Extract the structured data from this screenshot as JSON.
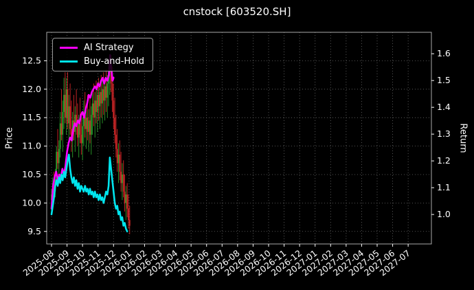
{
  "title": "cnstock [603520.SH]",
  "chart_data": {
    "type": "line",
    "title": "cnstock [603520.SH]",
    "ylabel_left": "Price",
    "ylabel_right": "Return",
    "x_unit": "months since 2025-08 (0 = 2025-08)",
    "xlim": [
      -0.31,
      24.5
    ],
    "left_ylim": [
      9.28,
      13.0
    ],
    "right_ylim": [
      0.89,
      1.68
    ],
    "left_yticks": [
      9.5,
      10.0,
      10.5,
      11.0,
      11.5,
      12.0,
      12.5
    ],
    "right_yticks": [
      1.0,
      1.1,
      1.2,
      1.3,
      1.4,
      1.5,
      1.6
    ],
    "xtick_pos": [
      0,
      1,
      2,
      3,
      4,
      5,
      6,
      7,
      8,
      9,
      10,
      11,
      12,
      13,
      14,
      15,
      16,
      17,
      18,
      19,
      20,
      21,
      22,
      23
    ],
    "xtick_labels": [
      "2025-08",
      "2025-09",
      "2025-10",
      "2025-11",
      "2025-12",
      "2026-01",
      "2026-02",
      "2026-03",
      "2026-04",
      "2026-05",
      "2026-06",
      "2026-07",
      "2026-08",
      "2026-09",
      "2026-10",
      "2026-11",
      "2026-12",
      "2027-01",
      "2027-02",
      "2027-03",
      "2027-04",
      "2027-05",
      "2027-06",
      "2027-07"
    ],
    "grid": true,
    "legend_position": "upper-left",
    "style": {
      "background": "#000000",
      "text": "#ffffff",
      "grid": "#6b6b6b",
      "spine": "#aaaaaa"
    },
    "candle_colors": {
      "up": "#2ca02c",
      "down": "#d62728"
    },
    "series": [
      {
        "name": "AI Strategy",
        "color": "#ff00ff",
        "plotted_against": "left_price_scale",
        "x": [
          0,
          0.1,
          0.2,
          0.3,
          0.4,
          0.5,
          0.6,
          0.7,
          0.8,
          0.9,
          1.0,
          1.1,
          1.2,
          1.3,
          1.4,
          1.5,
          1.6,
          1.7,
          1.8,
          1.9,
          2.0,
          2.1,
          2.2,
          2.3,
          2.4,
          2.5,
          2.6,
          2.7,
          2.8,
          2.9,
          3.0,
          3.1,
          3.2,
          3.3,
          3.4,
          3.5,
          3.6,
          3.7,
          3.78,
          3.86,
          3.94,
          4.0
        ],
        "values": [
          9.9,
          10.3,
          10.45,
          10.55,
          10.4,
          10.5,
          10.45,
          10.6,
          10.5,
          10.65,
          10.9,
          11.05,
          11.15,
          11.1,
          11.3,
          11.4,
          11.35,
          11.45,
          11.4,
          11.55,
          11.6,
          11.5,
          11.65,
          11.75,
          11.9,
          11.85,
          11.95,
          12.0,
          12.05,
          12.0,
          12.1,
          12.05,
          12.15,
          12.2,
          12.1,
          12.2,
          12.15,
          12.25,
          12.6,
          12.35,
          12.15,
          12.2
        ]
      },
      {
        "name": "Buy-and-Hold",
        "color": "#00e5ee",
        "plotted_against": "left_price_scale",
        "x": [
          0,
          0.08,
          0.16,
          0.24,
          0.32,
          0.4,
          0.48,
          0.56,
          0.64,
          0.72,
          0.8,
          0.88,
          0.96,
          1.04,
          1.12,
          1.2,
          1.28,
          1.36,
          1.44,
          1.52,
          1.6,
          1.68,
          1.76,
          1.84,
          1.92,
          2.0,
          2.08,
          2.16,
          2.24,
          2.32,
          2.4,
          2.48,
          2.56,
          2.64,
          2.72,
          2.8,
          2.88,
          2.96,
          3.04,
          3.12,
          3.2,
          3.28,
          3.36,
          3.44,
          3.52,
          3.6,
          3.68,
          3.76,
          3.84,
          3.92,
          4.0,
          4.08,
          4.16,
          4.24,
          4.32,
          4.4,
          4.48,
          4.56,
          4.64,
          4.72,
          4.8,
          4.88
        ],
        "values": [
          9.8,
          9.95,
          10.1,
          10.3,
          10.4,
          10.3,
          10.45,
          10.35,
          10.5,
          10.4,
          10.55,
          10.45,
          10.6,
          10.75,
          10.85,
          10.6,
          10.45,
          10.35,
          10.45,
          10.3,
          10.4,
          10.25,
          10.35,
          10.2,
          10.3,
          10.25,
          10.2,
          10.3,
          10.2,
          10.25,
          10.15,
          10.25,
          10.15,
          10.2,
          10.1,
          10.2,
          10.1,
          10.15,
          10.05,
          10.15,
          10.05,
          10.1,
          10.0,
          10.1,
          10.2,
          10.15,
          10.3,
          10.8,
          10.6,
          10.4,
          10.2,
          10.0,
          9.9,
          9.95,
          9.8,
          9.85,
          9.7,
          9.75,
          9.6,
          9.65,
          9.55,
          9.5
        ]
      }
    ],
    "candles": {
      "format": [
        "x",
        "open",
        "high",
        "low",
        "close"
      ],
      "rows": [
        [
          0.0,
          10.05,
          10.25,
          9.85,
          10.15
        ],
        [
          0.08,
          10.15,
          10.45,
          10.05,
          10.35
        ],
        [
          0.16,
          10.35,
          10.55,
          10.1,
          10.2
        ],
        [
          0.24,
          10.2,
          10.6,
          10.1,
          10.5
        ],
        [
          0.32,
          10.5,
          11.0,
          10.4,
          10.9
        ],
        [
          0.4,
          10.9,
          11.3,
          10.6,
          10.7
        ],
        [
          0.48,
          10.7,
          11.1,
          10.5,
          10.95
        ],
        [
          0.56,
          10.95,
          11.6,
          10.8,
          11.4
        ],
        [
          0.64,
          11.4,
          12.0,
          11.1,
          11.2
        ],
        [
          0.72,
          11.2,
          11.8,
          10.9,
          11.6
        ],
        [
          0.8,
          11.6,
          12.2,
          11.3,
          11.9
        ],
        [
          0.88,
          11.9,
          12.3,
          11.4,
          11.5
        ],
        [
          0.96,
          11.5,
          12.2,
          11.2,
          12.0
        ],
        [
          1.04,
          12.0,
          12.3,
          11.3,
          11.4
        ],
        [
          1.12,
          11.4,
          11.9,
          11.0,
          11.7
        ],
        [
          1.2,
          11.7,
          12.1,
          11.2,
          11.3
        ],
        [
          1.28,
          11.3,
          11.8,
          10.9,
          11.1
        ],
        [
          1.36,
          11.1,
          11.6,
          10.8,
          11.45
        ],
        [
          1.44,
          11.45,
          11.9,
          11.1,
          11.25
        ],
        [
          1.52,
          11.25,
          11.7,
          10.9,
          11.55
        ],
        [
          1.6,
          11.55,
          12.0,
          11.2,
          11.35
        ],
        [
          1.68,
          11.35,
          11.75,
          11.0,
          11.15
        ],
        [
          1.76,
          11.15,
          11.55,
          10.8,
          11.4
        ],
        [
          1.84,
          11.4,
          11.85,
          11.05,
          11.2
        ],
        [
          1.92,
          11.2,
          11.6,
          10.85,
          11.05
        ],
        [
          2.0,
          11.05,
          11.5,
          10.75,
          11.35
        ],
        [
          2.08,
          11.35,
          11.8,
          11.0,
          11.55
        ],
        [
          2.16,
          11.55,
          11.95,
          11.15,
          11.3
        ],
        [
          2.24,
          11.3,
          11.7,
          10.95,
          11.5
        ],
        [
          2.32,
          11.5,
          11.9,
          11.1,
          11.25
        ],
        [
          2.4,
          11.25,
          11.65,
          10.9,
          11.45
        ],
        [
          2.48,
          11.45,
          11.85,
          11.05,
          11.2
        ],
        [
          2.56,
          11.2,
          11.7,
          10.85,
          11.55
        ],
        [
          2.64,
          11.55,
          12.0,
          11.2,
          11.75
        ],
        [
          2.72,
          11.75,
          12.1,
          11.35,
          11.5
        ],
        [
          2.8,
          11.5,
          11.95,
          11.15,
          11.8
        ],
        [
          2.88,
          11.8,
          12.15,
          11.4,
          11.6
        ],
        [
          2.96,
          11.6,
          12.05,
          11.25,
          11.9
        ],
        [
          3.04,
          11.9,
          12.2,
          11.45,
          11.7
        ],
        [
          3.12,
          11.7,
          12.1,
          11.3,
          11.95
        ],
        [
          3.2,
          11.95,
          12.25,
          11.5,
          11.75
        ],
        [
          3.28,
          11.75,
          12.15,
          11.4,
          12.0
        ],
        [
          3.36,
          12.0,
          12.3,
          11.55,
          11.8
        ],
        [
          3.44,
          11.8,
          12.2,
          11.45,
          12.05
        ],
        [
          3.52,
          12.05,
          12.35,
          11.6,
          11.85
        ],
        [
          3.6,
          11.85,
          12.25,
          11.5,
          12.1
        ],
        [
          3.68,
          12.1,
          12.4,
          11.7,
          12.3
        ],
        [
          3.76,
          12.3,
          12.55,
          11.9,
          12.45
        ],
        [
          3.84,
          12.45,
          12.6,
          11.95,
          12.1
        ],
        [
          3.92,
          12.1,
          12.4,
          11.6,
          11.8
        ],
        [
          4.0,
          11.8,
          12.1,
          11.3,
          11.5
        ],
        [
          4.08,
          11.5,
          11.85,
          11.05,
          11.2
        ],
        [
          4.16,
          11.2,
          11.55,
          10.8,
          10.95
        ],
        [
          4.24,
          10.95,
          11.3,
          10.55,
          10.7
        ],
        [
          4.32,
          10.7,
          11.05,
          10.35,
          10.85
        ],
        [
          4.4,
          10.85,
          11.1,
          10.4,
          10.55
        ],
        [
          4.48,
          10.55,
          10.9,
          10.2,
          10.35
        ],
        [
          4.56,
          10.35,
          10.7,
          10.05,
          10.5
        ],
        [
          4.64,
          10.5,
          10.75,
          10.1,
          10.2
        ],
        [
          4.72,
          10.2,
          10.5,
          9.85,
          10.0
        ],
        [
          4.8,
          10.0,
          10.3,
          9.7,
          10.15
        ],
        [
          4.88,
          10.15,
          10.35,
          9.75,
          9.9
        ],
        [
          4.96,
          9.9,
          10.15,
          9.55,
          9.7
        ],
        [
          5.04,
          9.7,
          9.95,
          9.45,
          9.6
        ]
      ]
    }
  }
}
